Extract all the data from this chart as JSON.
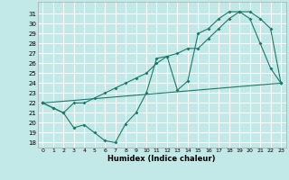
{
  "xlabel": "Humidex (Indice chaleur)",
  "background_color": "#c2e8e8",
  "grid_color": "#ffffff",
  "line_color": "#1a7a6a",
  "xlim": [
    -0.5,
    23.5
  ],
  "ylim": [
    17.5,
    32.2
  ],
  "xticks": [
    0,
    1,
    2,
    3,
    4,
    5,
    6,
    7,
    8,
    9,
    10,
    11,
    12,
    13,
    14,
    15,
    16,
    17,
    18,
    19,
    20,
    21,
    22,
    23
  ],
  "yticks": [
    18,
    19,
    20,
    21,
    22,
    23,
    24,
    25,
    26,
    27,
    28,
    29,
    30,
    31
  ],
  "line1_x": [
    0,
    1,
    2,
    3,
    4,
    5,
    6,
    7,
    8,
    9,
    10,
    11,
    12,
    13,
    14,
    15,
    16,
    17,
    18,
    19,
    20,
    21,
    22,
    23
  ],
  "line1_y": [
    22.0,
    21.5,
    21.0,
    19.5,
    19.8,
    19.0,
    18.2,
    18.0,
    19.9,
    21.0,
    23.0,
    26.5,
    26.7,
    23.3,
    24.2,
    29.0,
    29.5,
    30.5,
    31.2,
    31.2,
    30.5,
    28.0,
    25.5,
    24.0
  ],
  "line2_x": [
    0,
    1,
    2,
    3,
    4,
    5,
    6,
    7,
    8,
    9,
    10,
    11,
    12,
    13,
    14,
    15,
    16,
    17,
    18,
    19,
    20,
    21,
    22,
    23
  ],
  "line2_y": [
    22.0,
    21.5,
    21.0,
    22.0,
    22.0,
    22.5,
    23.0,
    23.5,
    24.0,
    24.5,
    25.0,
    26.0,
    26.7,
    27.0,
    27.5,
    27.5,
    28.5,
    29.5,
    30.5,
    31.2,
    31.2,
    30.5,
    29.5,
    24.0
  ],
  "line3_x": [
    0,
    23
  ],
  "line3_y": [
    22.0,
    24.0
  ]
}
